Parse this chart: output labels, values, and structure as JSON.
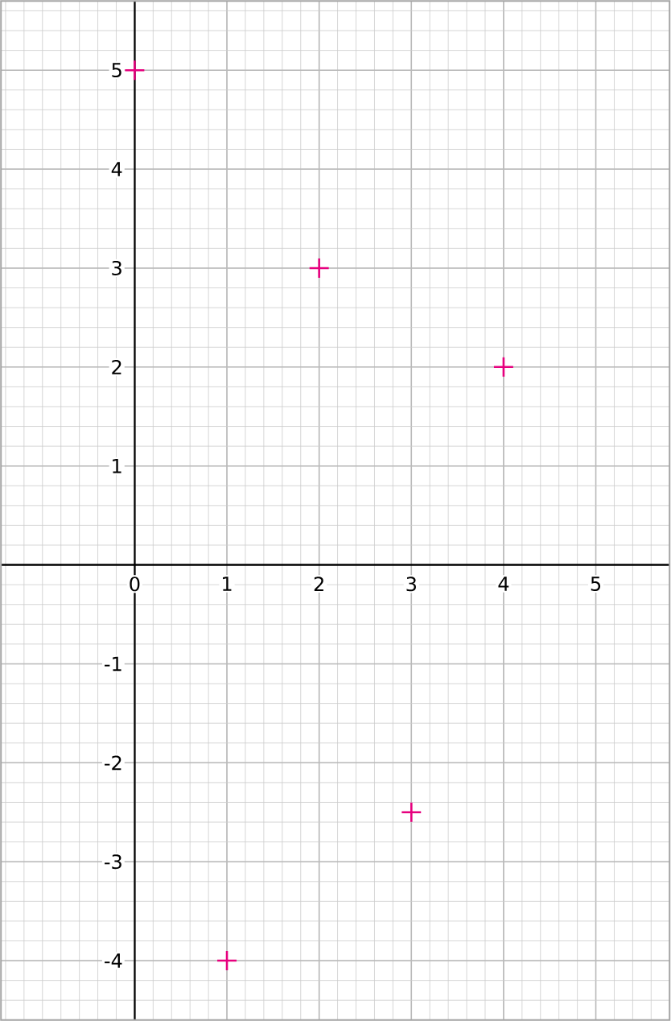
{
  "chart_data": {
    "type": "scatter",
    "x": [
      0,
      1,
      2,
      3,
      4
    ],
    "values": [
      5,
      -4,
      3,
      -2.5,
      2
    ],
    "color": "#e6007e",
    "marker": "cross",
    "xlim": [
      -1.45,
      5.8
    ],
    "ylim": [
      -4.6,
      5.7
    ],
    "xticks": [
      0,
      1,
      2,
      3,
      4,
      5
    ],
    "yticks": [
      -4,
      -3,
      -2,
      -1,
      1,
      2,
      3,
      4,
      5
    ],
    "grid": true
  }
}
